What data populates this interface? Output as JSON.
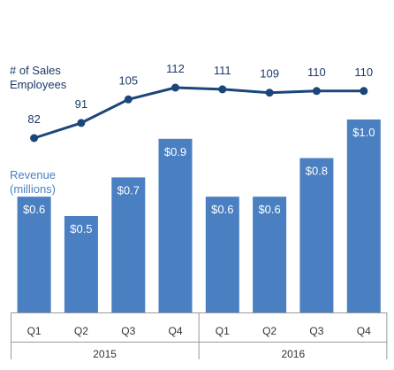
{
  "chart_data": {
    "type": "bar",
    "categories": [
      "Q1",
      "Q2",
      "Q3",
      "Q4",
      "Q1",
      "Q2",
      "Q3",
      "Q4"
    ],
    "groups": [
      {
        "label": "2015",
        "categories": [
          "Q1",
          "Q2",
          "Q3",
          "Q4"
        ]
      },
      {
        "label": "2016",
        "categories": [
          "Q1",
          "Q2",
          "Q3",
          "Q4"
        ]
      }
    ],
    "series": [
      {
        "name": "Revenue (millions)",
        "type": "bar",
        "values": [
          0.6,
          0.5,
          0.7,
          0.9,
          0.6,
          0.6,
          0.8,
          1.0
        ],
        "labels": [
          "$0.6",
          "$0.5",
          "$0.7",
          "$0.9",
          "$0.6",
          "$0.6",
          "$0.8",
          "$1.0"
        ],
        "color": "#4a7fc1"
      },
      {
        "name": "# of Sales Employees",
        "type": "line",
        "values": [
          82,
          91,
          105,
          112,
          111,
          109,
          110,
          110
        ],
        "labels": [
          "82",
          "91",
          "105",
          "112",
          "111",
          "109",
          "110",
          "110"
        ],
        "color": "#1b4679"
      }
    ],
    "legend": {
      "revenue_label_lines": [
        "Revenue",
        "(millions)"
      ],
      "employees_label_lines": [
        "# of Sales",
        "Employees"
      ]
    },
    "bar_label_color": "#ffffff",
    "line_label_color": "#1b3a66",
    "axis_color": "#9a9a9a",
    "title": "",
    "xlabel": "",
    "ylabel": "",
    "grid": false,
    "legend_placement": "left"
  }
}
